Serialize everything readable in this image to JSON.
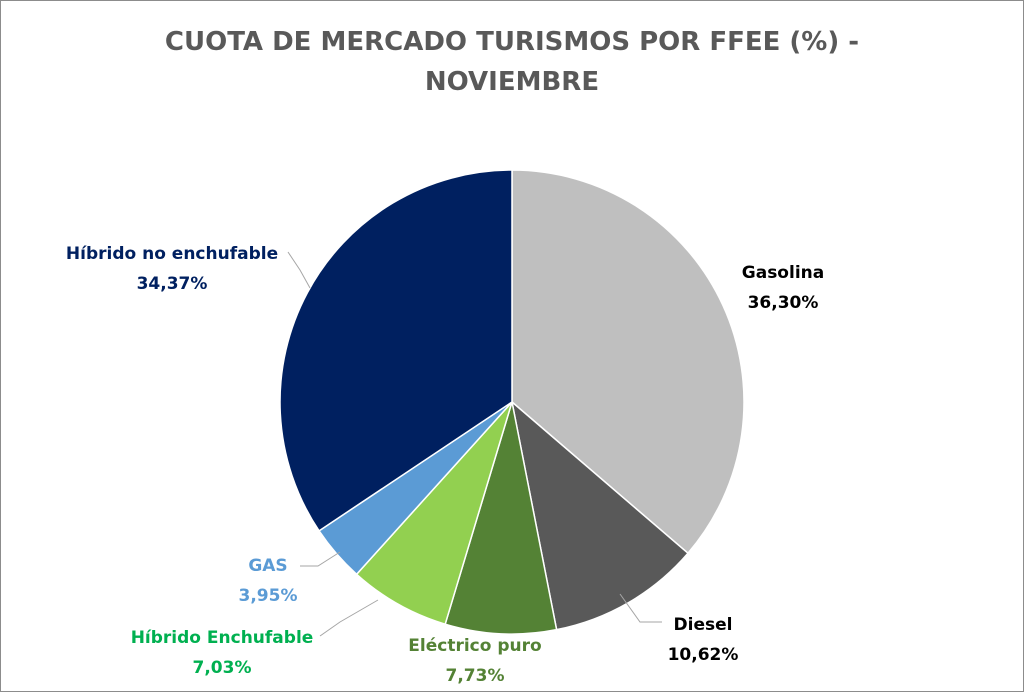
{
  "chart_data": {
    "type": "pie",
    "title_line1": "CUOTA DE MERCADO TURISMOS POR FFEE (%) -",
    "title_line2": "NOVIEMBRE",
    "slices": [
      {
        "name": "Gasolina",
        "value": 36.3,
        "label": "36,30%",
        "color": "#bfbfbf",
        "label_color": "#000000"
      },
      {
        "name": "Diesel",
        "value": 10.62,
        "label": "10,62%",
        "color": "#595959",
        "label_color": "#000000"
      },
      {
        "name": "Eléctrico puro",
        "value": 7.73,
        "label": "7,73%",
        "color": "#548235",
        "label_color": "#548235"
      },
      {
        "name": "Híbrido Enchufable",
        "value": 7.03,
        "label": "7,03%",
        "color": "#92d050",
        "label_color": "#00b050"
      },
      {
        "name": "GAS",
        "value": 3.95,
        "label": "3,95%",
        "color": "#5b9bd5",
        "label_color": "#5b9bd5"
      },
      {
        "name": "Híbrido no enchufable",
        "value": 34.37,
        "label": "34,37%",
        "color": "#002060",
        "label_color": "#002060"
      }
    ]
  }
}
